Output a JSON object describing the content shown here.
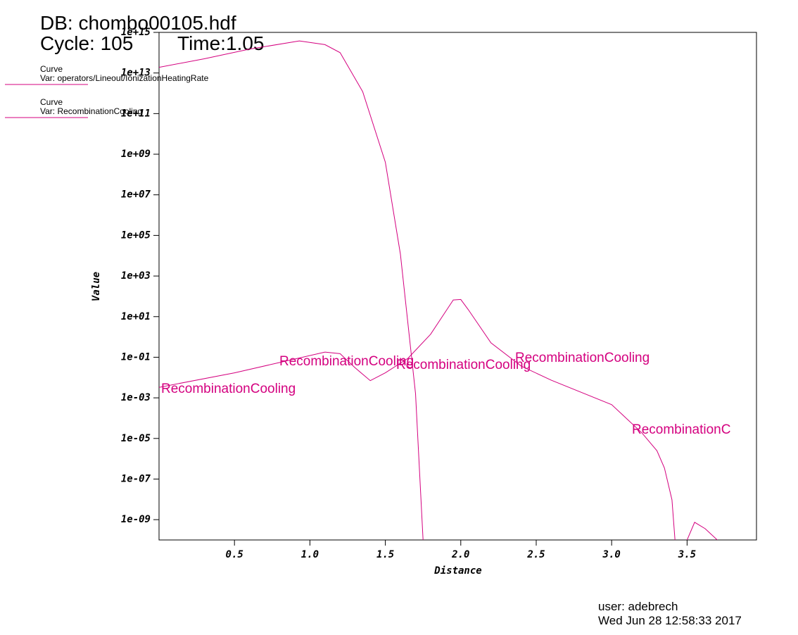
{
  "header": {
    "db": "DB: chombo00105.hdf",
    "cycle": "Cycle: 105",
    "time": "Time:1.05"
  },
  "footer": {
    "user": "user: adebrech",
    "date": "Wed Jun 28 12:58:33 2017"
  },
  "chart_data": {
    "type": "line",
    "log_y": true,
    "xlabel": "Distance",
    "ylabel": "Value",
    "xlim": [
      0,
      3.96
    ],
    "ylim": [
      1e-10,
      1000000000000000.0
    ],
    "xticks": [
      0.5,
      {
        "value": 1.0,
        "label": "1.0"
      },
      1.5,
      {
        "value": 2.0,
        "label": "2.0"
      },
      2.5,
      {
        "value": 3.0,
        "label": "3.0"
      },
      3.5
    ],
    "yticks": [
      {
        "value": 1000000000000000.0,
        "label": "1e+15"
      },
      {
        "value": 10000000000000.0,
        "label": "1e+13"
      },
      {
        "value": 100000000000.0,
        "label": "1e+11"
      },
      {
        "value": 1000000000.0,
        "label": "1e+09"
      },
      {
        "value": 10000000.0,
        "label": "1e+07"
      },
      {
        "value": 100000.0,
        "label": "1e+05"
      },
      {
        "value": 1000.0,
        "label": "1e+03"
      },
      {
        "value": 10,
        "label": "1e+01"
      },
      {
        "value": 0.1,
        "label": "1e-01"
      },
      {
        "value": 0.001,
        "label": "1e-03"
      },
      {
        "value": 1e-05,
        "label": "1e-05"
      },
      {
        "value": 1e-07,
        "label": "1e-07"
      },
      {
        "value": 1e-09,
        "label": "1e-09"
      }
    ],
    "series": [
      {
        "name": "Curve",
        "var": "Var: operators/Lineout/IonizationHeatingRate",
        "color": "#d4007f",
        "x": [
          0,
          0.3,
          0.6,
          0.93,
          1.1,
          1.2,
          1.35,
          1.5,
          1.6,
          1.7,
          1.75
        ],
        "values": [
          19000000000000.0,
          50000000000000.0,
          150000000000000.0,
          380000000000000.0,
          250000000000000.0,
          100000000000000.0,
          1200000000000.0,
          400000000.0,
          12000.0,
          0.0016,
          1e-10
        ]
      },
      {
        "name": "Curve",
        "var": "Var: RecombinationCooling",
        "color": "#d4007f",
        "x": [
          0,
          0.5,
          0.8,
          1.1,
          1.2,
          1.3,
          1.4,
          1.5,
          1.65,
          1.8,
          1.95,
          2.0,
          2.05,
          2.2,
          2.4,
          2.6,
          3.0,
          3.2,
          3.3,
          3.35,
          3.4,
          3.42,
          3.46,
          3.5,
          3.55,
          3.62,
          3.7
        ],
        "values": [
          0.0033,
          0.017,
          0.055,
          0.18,
          0.15,
          0.03,
          0.007,
          0.017,
          0.089,
          1.35,
          66,
          70,
          22,
          0.51,
          0.037,
          0.0074,
          0.00046,
          1.9e-05,
          2.5e-06,
          3.5e-07,
          9.5e-09,
          1e-10,
          null,
          1e-10,
          7.4e-10,
          3.6e-10,
          1e-10
        ]
      }
    ],
    "annotations": [
      "RecombinationCooling",
      "RecombinationCooling",
      "RecombinationCooling",
      "RecombinationCooling",
      "RecombinationC"
    ]
  }
}
